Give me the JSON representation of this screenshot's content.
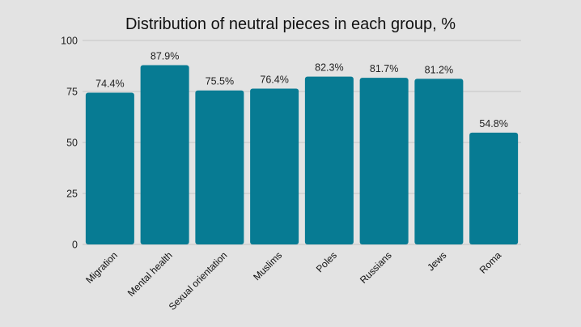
{
  "chart_data": {
    "type": "bar",
    "title": "Distribution of neutral pieces in each group, %",
    "xlabel": "",
    "ylabel": "",
    "categories": [
      "Migration",
      "Mental health",
      "Sexual orientation",
      "Muslims",
      "Poles",
      "Russians",
      "Jews",
      "Roma"
    ],
    "values": [
      74.4,
      87.9,
      75.5,
      76.4,
      82.3,
      81.7,
      81.2,
      54.8
    ],
    "value_labels": [
      "74.4%",
      "87.9%",
      "75.5%",
      "76.4%",
      "82.3%",
      "81.7%",
      "81.2%",
      "54.8%"
    ],
    "ylim": [
      0,
      100
    ],
    "yticks": [
      "0",
      "25",
      "50",
      "75",
      "100"
    ],
    "grid": true,
    "bar_color": "#077b93"
  }
}
